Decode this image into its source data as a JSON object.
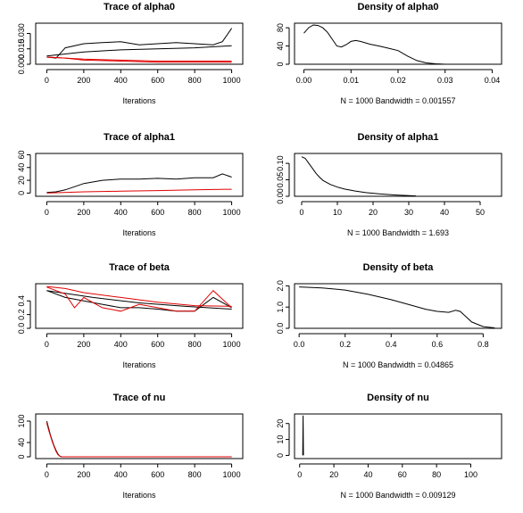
{
  "chart_data": [
    {
      "type": "line",
      "title": "Trace of alpha0",
      "xlabel": "Iterations",
      "xlim": [
        -60,
        1060
      ],
      "ylim": [
        0,
        0.04
      ],
      "xticks": [
        "0",
        "200",
        "400",
        "600",
        "800",
        "1000"
      ],
      "yticks": [
        "0.000",
        "0.015",
        "0.030"
      ],
      "ytick_values": [
        0,
        0.015,
        0.03
      ],
      "series": [
        {
          "color": "#000000",
          "x": [
            0,
            50,
            80,
            100,
            200,
            300,
            400,
            500,
            600,
            700,
            800,
            900,
            950,
            1000
          ],
          "y": [
            0.007,
            0.006,
            0.012,
            0.016,
            0.02,
            0.021,
            0.022,
            0.019,
            0.02,
            0.021,
            0.02,
            0.019,
            0.022,
            0.035
          ]
        },
        {
          "color": "#000000",
          "x": [
            0,
            200,
            400,
            600,
            800,
            1000
          ],
          "y": [
            0.008,
            0.012,
            0.014,
            0.015,
            0.016,
            0.018
          ]
        },
        {
          "color": "#e00000",
          "x": [
            0,
            100,
            200,
            400,
            600,
            800,
            1000
          ],
          "y": [
            0.007,
            0.006,
            0.004,
            0.003,
            0.002,
            0.002,
            0.002
          ]
        },
        {
          "color": "#e00000",
          "x": [
            0,
            200,
            400,
            600,
            800,
            1000
          ],
          "y": [
            0.007,
            0.005,
            0.004,
            0.003,
            0.003,
            0.003
          ]
        }
      ]
    },
    {
      "type": "line",
      "title": "Density of alpha0",
      "xlabel": "N = 1000   Bandwidth = 0.001557",
      "xlim": [
        -0.002,
        0.042
      ],
      "ylim": [
        0,
        90
      ],
      "xticks": [
        "0.00",
        "0.01",
        "0.02",
        "0.03",
        "0.04"
      ],
      "xtick_values": [
        0,
        0.01,
        0.02,
        0.03,
        0.04
      ],
      "yticks": [
        "0",
        "40",
        "80"
      ],
      "ytick_values": [
        0,
        40,
        80
      ],
      "series": [
        {
          "color": "#000000",
          "x": [
            0.0,
            0.001,
            0.002,
            0.003,
            0.004,
            0.005,
            0.006,
            0.007,
            0.008,
            0.009,
            0.01,
            0.011,
            0.012,
            0.014,
            0.016,
            0.018,
            0.02,
            0.022,
            0.024,
            0.026,
            0.028,
            0.03
          ],
          "y": [
            68,
            80,
            86,
            85,
            80,
            70,
            55,
            40,
            38,
            43,
            50,
            52,
            50,
            44,
            40,
            35,
            30,
            18,
            8,
            3,
            1,
            0
          ]
        }
      ]
    },
    {
      "type": "line",
      "title": "Trace of alpha1",
      "xlabel": "Iterations",
      "xlim": [
        -60,
        1060
      ],
      "ylim": [
        -5,
        62
      ],
      "xticks": [
        "0",
        "200",
        "400",
        "600",
        "800",
        "1000"
      ],
      "yticks": [
        "0",
        "20",
        "40",
        "60"
      ],
      "ytick_values": [
        0,
        20,
        40,
        60
      ],
      "series": [
        {
          "color": "#000000",
          "x": [
            0,
            50,
            100,
            150,
            200,
            300,
            400,
            500,
            600,
            700,
            800,
            900,
            950,
            1000
          ],
          "y": [
            1,
            2,
            5,
            10,
            15,
            20,
            22,
            22,
            23,
            22,
            24,
            24,
            30,
            25
          ]
        },
        {
          "color": "#e00000",
          "x": [
            0,
            200,
            400,
            600,
            800,
            1000
          ],
          "y": [
            0,
            2,
            3,
            4,
            5,
            6
          ]
        }
      ]
    },
    {
      "type": "line",
      "title": "Density of alpha1",
      "xlabel": "N = 1000   Bandwidth = 1.693",
      "xlim": [
        -2,
        56
      ],
      "ylim": [
        0,
        0.13
      ],
      "xticks": [
        "0",
        "10",
        "20",
        "30",
        "40",
        "50"
      ],
      "xtick_values": [
        0,
        10,
        20,
        30,
        40,
        50
      ],
      "yticks": [
        "0.00",
        "0.05",
        "0.10"
      ],
      "ytick_values": [
        0,
        0.05,
        0.1
      ],
      "series": [
        {
          "color": "#000000",
          "x": [
            0,
            1,
            2,
            3,
            4,
            5,
            6,
            8,
            10,
            12,
            15,
            18,
            22,
            26,
            30,
            32
          ],
          "y": [
            0.12,
            0.115,
            0.1,
            0.085,
            0.07,
            0.058,
            0.048,
            0.036,
            0.028,
            0.022,
            0.016,
            0.011,
            0.007,
            0.004,
            0.002,
            0.001
          ]
        }
      ]
    },
    {
      "type": "line",
      "title": "Trace of beta",
      "xlabel": "Iterations",
      "xlim": [
        -60,
        1060
      ],
      "ylim": [
        0,
        0.65
      ],
      "xticks": [
        "0",
        "200",
        "400",
        "600",
        "800",
        "1000"
      ],
      "yticks": [
        "0.0",
        "0.2",
        "0.4"
      ],
      "ytick_values": [
        0,
        0.2,
        0.4
      ],
      "series": [
        {
          "color": "#000000",
          "x": [
            0,
            100,
            200,
            300,
            400,
            500,
            600,
            700,
            800,
            900,
            1000
          ],
          "y": [
            0.55,
            0.45,
            0.4,
            0.35,
            0.3,
            0.3,
            0.28,
            0.25,
            0.25,
            0.45,
            0.3
          ]
        },
        {
          "color": "#000000",
          "x": [
            0,
            250,
            500,
            750,
            1000
          ],
          "y": [
            0.55,
            0.45,
            0.37,
            0.32,
            0.28
          ]
        },
        {
          "color": "#e00000",
          "x": [
            0,
            50,
            100,
            150,
            200,
            300,
            400,
            500,
            600,
            700,
            800,
            900,
            1000
          ],
          "y": [
            0.6,
            0.55,
            0.5,
            0.3,
            0.45,
            0.3,
            0.25,
            0.35,
            0.3,
            0.25,
            0.25,
            0.55,
            0.3
          ]
        },
        {
          "color": "#e00000",
          "x": [
            0,
            100,
            200,
            400,
            600,
            800,
            1000
          ],
          "y": [
            0.61,
            0.58,
            0.52,
            0.45,
            0.38,
            0.33,
            0.32
          ]
        }
      ]
    },
    {
      "type": "line",
      "title": "Density of beta",
      "xlabel": "N = 1000   Bandwidth = 0.04865",
      "xlim": [
        -0.02,
        0.88
      ],
      "ylim": [
        0,
        2.1
      ],
      "xticks": [
        "0.0",
        "0.2",
        "0.4",
        "0.6",
        "0.8"
      ],
      "xtick_values": [
        0,
        0.2,
        0.4,
        0.6,
        0.8
      ],
      "yticks": [
        "0.0",
        "1.0",
        "2.0"
      ],
      "ytick_values": [
        0,
        1,
        2
      ],
      "series": [
        {
          "color": "#000000",
          "x": [
            0.0,
            0.1,
            0.2,
            0.3,
            0.4,
            0.5,
            0.55,
            0.6,
            0.65,
            0.68,
            0.7,
            0.72,
            0.75,
            0.8,
            0.85
          ],
          "y": [
            1.95,
            1.9,
            1.8,
            1.6,
            1.35,
            1.05,
            0.9,
            0.8,
            0.75,
            0.85,
            0.8,
            0.6,
            0.3,
            0.08,
            0.02
          ]
        }
      ]
    },
    {
      "type": "line",
      "title": "Trace of nu",
      "xlabel": "Iterations",
      "xlim": [
        -60,
        1060
      ],
      "ylim": [
        -5,
        120
      ],
      "xticks": [
        "0",
        "200",
        "400",
        "600",
        "800",
        "1000"
      ],
      "yticks": [
        "0",
        "40",
        "100"
      ],
      "ytick_values": [
        0,
        40,
        100
      ],
      "series": [
        {
          "color": "#000000",
          "x": [
            0,
            10,
            20,
            30,
            40,
            50,
            60,
            70,
            80,
            1000
          ],
          "y": [
            100,
            80,
            60,
            45,
            30,
            18,
            8,
            2,
            0,
            0
          ]
        },
        {
          "color": "#e00000",
          "x": [
            0,
            10,
            20,
            30,
            40,
            50,
            60,
            70,
            80,
            1000
          ],
          "y": [
            95,
            75,
            58,
            42,
            28,
            15,
            6,
            2,
            0,
            0
          ]
        }
      ]
    },
    {
      "type": "line",
      "title": "Density of nu",
      "xlabel": "N = 1000   Bandwidth = 0.009129",
      "xlim": [
        -3,
        118
      ],
      "ylim": [
        -2,
        26
      ],
      "xticks": [
        "0",
        "20",
        "40",
        "60",
        "80",
        "100"
      ],
      "xtick_values": [
        0,
        20,
        40,
        60,
        80,
        100
      ],
      "yticks": [
        "0",
        "10",
        "20"
      ],
      "ytick_values": [
        0,
        10,
        20
      ],
      "series": [
        {
          "color": "#000000",
          "x": [
            1.8,
            2.0,
            2.2
          ],
          "y": [
            0,
            25,
            0
          ]
        }
      ]
    }
  ]
}
